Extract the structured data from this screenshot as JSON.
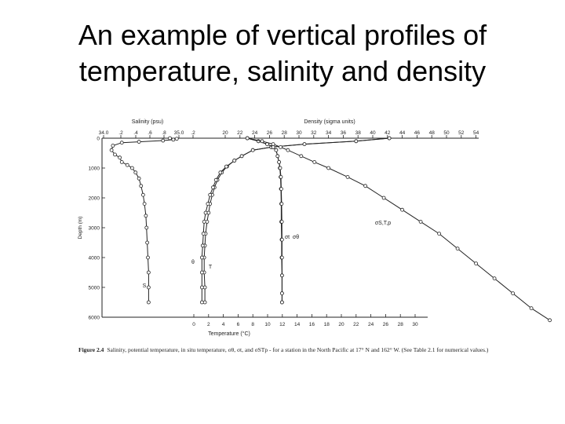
{
  "slide": {
    "title_line1": "An example of vertical profiles of",
    "title_line2": "temperature, salinity and density"
  },
  "caption": {
    "label": "Figure 2.4",
    "text": "Salinity, potential temperature, in situ temperature, σθ, σt, and σSTp - for a station in the North Pacific at 17° N and 162° W. (See Table 2.1 for numerical values.)"
  },
  "colors": {
    "ink": "#222222",
    "background": "#ffffff"
  },
  "chart_data": {
    "type": "line",
    "top_axes": [
      {
        "label": "Salinity (psu)",
        "ticks": [
          "34.0",
          ".2",
          ".4",
          ".6",
          ".8",
          "35.0",
          ".2"
        ]
      },
      {
        "label": "Density (sigma units)",
        "ticks": [
          "20",
          "22",
          "24",
          "26",
          "28",
          "30",
          "32",
          "34",
          "36",
          "38",
          "40",
          "42",
          "44",
          "46",
          "48",
          "50",
          "52",
          "54"
        ]
      }
    ],
    "bottom_axis": {
      "label": "Temperature (°C)",
      "ticks": [
        "0",
        "2",
        "4",
        "6",
        "8",
        "10",
        "12",
        "14",
        "16",
        "18",
        "20",
        "22",
        "24",
        "26",
        "28",
        "30"
      ]
    },
    "y_axis": {
      "label": "Depth (m)",
      "ticks": [
        "0",
        "1000",
        "2000",
        "3000",
        "4000",
        "5000",
        "6000"
      ],
      "ylim": [
        0,
        6000
      ],
      "inverted": true
    },
    "series": [
      {
        "name": "S",
        "axis": "salinity",
        "points": [
          [
            35.0,
            0
          ],
          [
            35.1,
            20
          ],
          [
            35.05,
            50
          ],
          [
            34.9,
            80
          ],
          [
            34.55,
            120
          ],
          [
            34.3,
            150
          ],
          [
            34.17,
            250
          ],
          [
            34.15,
            400
          ],
          [
            34.2,
            550
          ],
          [
            34.27,
            650
          ],
          [
            34.3,
            800
          ],
          [
            34.38,
            900
          ],
          [
            34.45,
            1000
          ],
          [
            34.5,
            1150
          ],
          [
            34.55,
            1350
          ],
          [
            34.58,
            1600
          ],
          [
            34.61,
            1900
          ],
          [
            34.63,
            2200
          ],
          [
            34.65,
            2600
          ],
          [
            34.66,
            3000
          ],
          [
            34.67,
            3500
          ],
          [
            34.68,
            4000
          ],
          [
            34.69,
            4500
          ],
          [
            34.69,
            5000
          ],
          [
            34.69,
            5500
          ]
        ]
      },
      {
        "name": "T",
        "axis": "temperature",
        "points": [
          [
            26.5,
            0
          ],
          [
            22,
            100
          ],
          [
            15,
            200
          ],
          [
            10.5,
            300
          ],
          [
            8,
            400
          ],
          [
            6.5,
            600
          ],
          [
            5.5,
            750
          ],
          [
            4.5,
            950
          ],
          [
            3.8,
            1150
          ],
          [
            3.2,
            1400
          ],
          [
            2.8,
            1650
          ],
          [
            2.5,
            1900
          ],
          [
            2.2,
            2200
          ],
          [
            2.0,
            2500
          ],
          [
            1.8,
            2800
          ],
          [
            1.6,
            3200
          ],
          [
            1.5,
            3600
          ],
          [
            1.4,
            4000
          ],
          [
            1.4,
            4500
          ],
          [
            1.5,
            5000
          ],
          [
            1.5,
            5500
          ]
        ]
      },
      {
        "name": "θ",
        "axis": "temperature",
        "points": [
          [
            26.5,
            0
          ],
          [
            22,
            100
          ],
          [
            15,
            200
          ],
          [
            10.5,
            300
          ],
          [
            8,
            400
          ],
          [
            6.5,
            600
          ],
          [
            5.5,
            750
          ],
          [
            4.4,
            950
          ],
          [
            3.6,
            1150
          ],
          [
            3.0,
            1400
          ],
          [
            2.6,
            1650
          ],
          [
            2.2,
            1900
          ],
          [
            1.9,
            2200
          ],
          [
            1.6,
            2500
          ],
          [
            1.4,
            2800
          ],
          [
            1.3,
            3200
          ],
          [
            1.2,
            3600
          ],
          [
            1.1,
            4000
          ],
          [
            1.1,
            4500
          ],
          [
            1.1,
            5000
          ],
          [
            1.1,
            5500
          ]
        ]
      },
      {
        "name": "σt",
        "axis": "density",
        "points": [
          [
            23,
            0
          ],
          [
            24.5,
            100
          ],
          [
            25.7,
            200
          ],
          [
            26.5,
            300
          ],
          [
            26.9,
            400
          ],
          [
            27.1,
            600
          ],
          [
            27.3,
            800
          ],
          [
            27.4,
            1000
          ],
          [
            27.5,
            1300
          ],
          [
            27.55,
            1700
          ],
          [
            27.6,
            2200
          ],
          [
            27.6,
            2800
          ],
          [
            27.65,
            3400
          ],
          [
            27.65,
            4000
          ],
          [
            27.7,
            4600
          ],
          [
            27.7,
            5200
          ],
          [
            27.7,
            5500
          ]
        ]
      },
      {
        "name": "σθ",
        "axis": "density",
        "points": [
          [
            23,
            0
          ],
          [
            24.5,
            100
          ],
          [
            25.7,
            200
          ],
          [
            26.5,
            300
          ],
          [
            26.9,
            400
          ],
          [
            27.1,
            600
          ],
          [
            27.3,
            800
          ],
          [
            27.45,
            1000
          ],
          [
            27.55,
            1300
          ],
          [
            27.6,
            1700
          ],
          [
            27.65,
            2200
          ],
          [
            27.68,
            2800
          ],
          [
            27.7,
            3400
          ],
          [
            27.7,
            4000
          ],
          [
            27.7,
            4600
          ],
          [
            27.7,
            5200
          ],
          [
            27.7,
            5500
          ]
        ]
      },
      {
        "name": "σS,T,p",
        "axis": "density",
        "points": [
          [
            23,
            0
          ],
          [
            25,
            100
          ],
          [
            26.5,
            200
          ],
          [
            27.5,
            300
          ],
          [
            28.5,
            400
          ],
          [
            30.3,
            600
          ],
          [
            32.1,
            800
          ],
          [
            34,
            1000
          ],
          [
            36.6,
            1300
          ],
          [
            39,
            1600
          ],
          [
            41.5,
            2000
          ],
          [
            44,
            2400
          ],
          [
            46.5,
            2800
          ],
          [
            49,
            3200
          ],
          [
            51.5,
            3700
          ],
          [
            54,
            4200
          ],
          [
            56.5,
            4700
          ],
          [
            59,
            5200
          ],
          [
            61.5,
            5700
          ],
          [
            64,
            6100
          ]
        ]
      }
    ],
    "annotations": [
      "S",
      "T",
      "θ",
      "σt",
      "σθ",
      "σS,T,p"
    ]
  }
}
